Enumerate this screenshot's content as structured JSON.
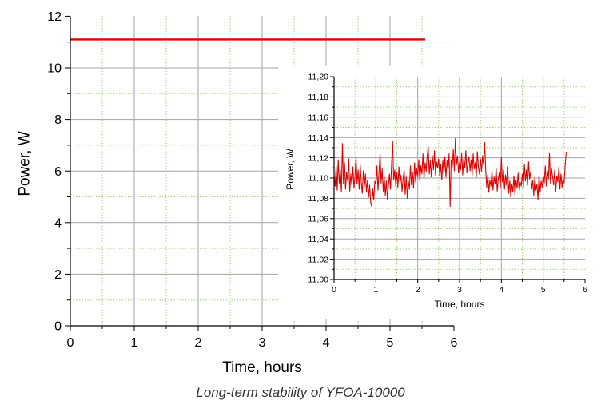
{
  "caption": "Long-term stability of YFOA-10000",
  "colors": {
    "line": "#e30000",
    "major_grid": "#a3a3a3",
    "minor_grid": "#8fc95a",
    "axis": "#000000",
    "inset_background": "#ffffff"
  },
  "chart_data": [
    {
      "type": "line",
      "xlabel": "Time, hours",
      "ylabel": "Power, W",
      "xlim": [
        0,
        6
      ],
      "ylim": [
        0,
        12
      ],
      "xticks": [
        0,
        1,
        2,
        3,
        4,
        5,
        6
      ],
      "xticklabels": [
        "0",
        "1",
        "2",
        "3",
        "4",
        "5",
        "6"
      ],
      "xminor": [
        0.5,
        1.5,
        2.5,
        3.5,
        4.5,
        5.5
      ],
      "yticks": [
        0,
        2,
        4,
        6,
        8,
        10,
        12
      ],
      "yticklabels": [
        "0",
        "2",
        "4",
        "6",
        "8",
        "10",
        "12"
      ],
      "yminor": [
        1,
        3,
        5,
        7,
        9,
        11
      ],
      "grid": true,
      "series": [
        {
          "x": [
            0,
            0.5,
            1,
            1.5,
            2,
            2.5,
            3,
            3.5,
            4,
            4.5,
            5,
            5.5,
            5.55
          ],
          "y": [
            11.1,
            11.1,
            11.1,
            11.1,
            11.1,
            11.1,
            11.1,
            11.1,
            11.1,
            11.1,
            11.1,
            11.1,
            11.1
          ]
        }
      ]
    },
    {
      "type": "line",
      "xlabel": "Time, hours",
      "ylabel": "Power, W",
      "xlim": [
        0,
        6
      ],
      "ylim": [
        11.0,
        11.2
      ],
      "xticks": [
        0,
        1,
        2,
        3,
        4,
        5,
        6
      ],
      "xticklabels": [
        "0",
        "1",
        "2",
        "3",
        "4",
        "5",
        "6"
      ],
      "xminor": [
        0.5,
        1.5,
        2.5,
        3.5,
        4.5,
        5.5
      ],
      "yticks": [
        11.0,
        11.02,
        11.04,
        11.06,
        11.08,
        11.1,
        11.12,
        11.14,
        11.16,
        11.18,
        11.2
      ],
      "yticklabels": [
        "11,00",
        "11,02",
        "11,04",
        "11,06",
        "11,08",
        "11,10",
        "11,12",
        "11,14",
        "11,16",
        "11,18",
        "11,20"
      ],
      "yminor": [
        11.01,
        11.03,
        11.05,
        11.07,
        11.09,
        11.11,
        11.13,
        11.15,
        11.17,
        11.19
      ],
      "grid": true,
      "series": [
        {
          "x": [
            0,
            0.025,
            0.05,
            0.075,
            0.1,
            0.125,
            0.15,
            0.175,
            0.2,
            0.225,
            0.25,
            0.275,
            0.3,
            0.325,
            0.35,
            0.375,
            0.4,
            0.425,
            0.45,
            0.475,
            0.5,
            0.525,
            0.55,
            0.575,
            0.6,
            0.625,
            0.65,
            0.675,
            0.7,
            0.725,
            0.75,
            0.775,
            0.8,
            0.825,
            0.85,
            0.875,
            0.9,
            0.925,
            0.95,
            0.975,
            1,
            1.025,
            1.05,
            1.075,
            1.1,
            1.125,
            1.15,
            1.175,
            1.2,
            1.225,
            1.25,
            1.275,
            1.3,
            1.325,
            1.35,
            1.375,
            1.4,
            1.425,
            1.45,
            1.475,
            1.5,
            1.525,
            1.55,
            1.575,
            1.6,
            1.625,
            1.65,
            1.675,
            1.7,
            1.725,
            1.75,
            1.775,
            1.8,
            1.825,
            1.85,
            1.875,
            1.9,
            1.925,
            1.95,
            1.975,
            2,
            2.025,
            2.05,
            2.075,
            2.1,
            2.125,
            2.15,
            2.175,
            2.2,
            2.225,
            2.25,
            2.275,
            2.3,
            2.325,
            2.35,
            2.375,
            2.4,
            2.425,
            2.45,
            2.475,
            2.5,
            2.525,
            2.55,
            2.575,
            2.6,
            2.625,
            2.65,
            2.675,
            2.7,
            2.725,
            2.75,
            2.775,
            2.8,
            2.825,
            2.85,
            2.875,
            2.9,
            2.925,
            2.95,
            2.975,
            3,
            3.025,
            3.05,
            3.075,
            3.1,
            3.125,
            3.15,
            3.175,
            3.2,
            3.225,
            3.25,
            3.275,
            3.3,
            3.325,
            3.35,
            3.375,
            3.4,
            3.425,
            3.45,
            3.475,
            3.5,
            3.525,
            3.55,
            3.575,
            3.6,
            3.625,
            3.65,
            3.675,
            3.7,
            3.725,
            3.75,
            3.775,
            3.8,
            3.825,
            3.85,
            3.875,
            3.9,
            3.925,
            3.95,
            3.975,
            4,
            4.025,
            4.05,
            4.075,
            4.1,
            4.125,
            4.15,
            4.175,
            4.2,
            4.225,
            4.25,
            4.275,
            4.3,
            4.325,
            4.35,
            4.375,
            4.4,
            4.425,
            4.45,
            4.475,
            4.5,
            4.525,
            4.55,
            4.575,
            4.6,
            4.625,
            4.65,
            4.675,
            4.7,
            4.725,
            4.75,
            4.775,
            4.8,
            4.825,
            4.85,
            4.875,
            4.9,
            4.925,
            4.95,
            4.975,
            5,
            5.025,
            5.05,
            5.075,
            5.1,
            5.125,
            5.15,
            5.175,
            5.2,
            5.225,
            5.25,
            5.275,
            5.3,
            5.325,
            5.35,
            5.375,
            5.4,
            5.425,
            5.45,
            5.475,
            5.5,
            5.525,
            5.55
          ],
          "y": [
            11.103,
            11.092,
            11.112,
            11.088,
            11.118,
            11.095,
            11.108,
            11.086,
            11.134,
            11.094,
            11.115,
            11.089,
            11.106,
            11.097,
            11.119,
            11.087,
            11.104,
            11.093,
            11.111,
            11.09,
            11.102,
            11.121,
            11.094,
            11.108,
            11.089,
            11.113,
            11.096,
            11.085,
            11.107,
            11.092,
            11.104,
            11.086,
            11.098,
            11.081,
            11.093,
            11.076,
            11.072,
            11.089,
            11.079,
            11.097,
            11.094,
            11.112,
            11.088,
            11.106,
            11.124,
            11.095,
            11.109,
            11.087,
            11.101,
            11.083,
            11.097,
            11.079,
            11.093,
            11.104,
            11.089,
            11.114,
            11.136,
            11.098,
            11.108,
            11.092,
            11.106,
            11.091,
            11.111,
            11.095,
            11.103,
            11.087,
            11.099,
            11.108,
            11.084,
            11.101,
            11.08,
            11.097,
            11.089,
            11.112,
            11.093,
            11.106,
            11.09,
            11.115,
            11.096,
            11.109,
            11.101,
            11.118,
            11.097,
            11.112,
            11.104,
            11.124,
            11.099,
            11.115,
            11.106,
            11.121,
            11.131,
            11.104,
            11.117,
            11.101,
            11.122,
            11.108,
            11.127,
            11.103,
            11.116,
            11.11,
            11.119,
            11.102,
            11.113,
            11.098,
            11.118,
            11.104,
            11.121,
            11.101,
            11.117,
            11.109,
            11.124,
            11.072,
            11.118,
            11.111,
            11.128,
            11.107,
            11.139,
            11.113,
            11.122,
            11.105,
            11.116,
            11.108,
            11.125,
            11.103,
            11.119,
            11.11,
            11.127,
            11.105,
            11.114,
            11.121,
            11.107,
            11.118,
            11.102,
            11.124,
            11.109,
            11.115,
            11.101,
            11.126,
            11.111,
            11.104,
            11.119,
            11.106,
            11.122,
            11.113,
            11.135,
            11.108,
            11.091,
            11.103,
            11.086,
            11.098,
            11.092,
            11.107,
            11.088,
            11.101,
            11.094,
            11.11,
            11.087,
            11.099,
            11.105,
            11.09,
            11.12,
            11.096,
            11.108,
            11.089,
            11.103,
            11.093,
            11.111,
            11.085,
            11.097,
            11.081,
            11.094,
            11.086,
            11.102,
            11.083,
            11.098,
            11.09,
            11.105,
            11.087,
            11.096,
            11.092,
            11.104,
            11.091,
            11.113,
            11.097,
            11.108,
            11.093,
            11.116,
            11.099,
            11.106,
            11.089,
            11.098,
            11.083,
            11.101,
            11.088,
            11.094,
            11.079,
            11.103,
            11.086,
            11.097,
            11.091,
            11.102,
            11.095,
            11.112,
            11.092,
            11.107,
            11.099,
            11.125,
            11.094,
            11.109,
            11.101,
            11.093,
            11.108,
            11.087,
            11.102,
            11.096,
            11.111,
            11.089,
            11.104,
            11.091,
            11.099,
            11.095,
            11.112,
            11.126
          ]
        }
      ]
    }
  ]
}
